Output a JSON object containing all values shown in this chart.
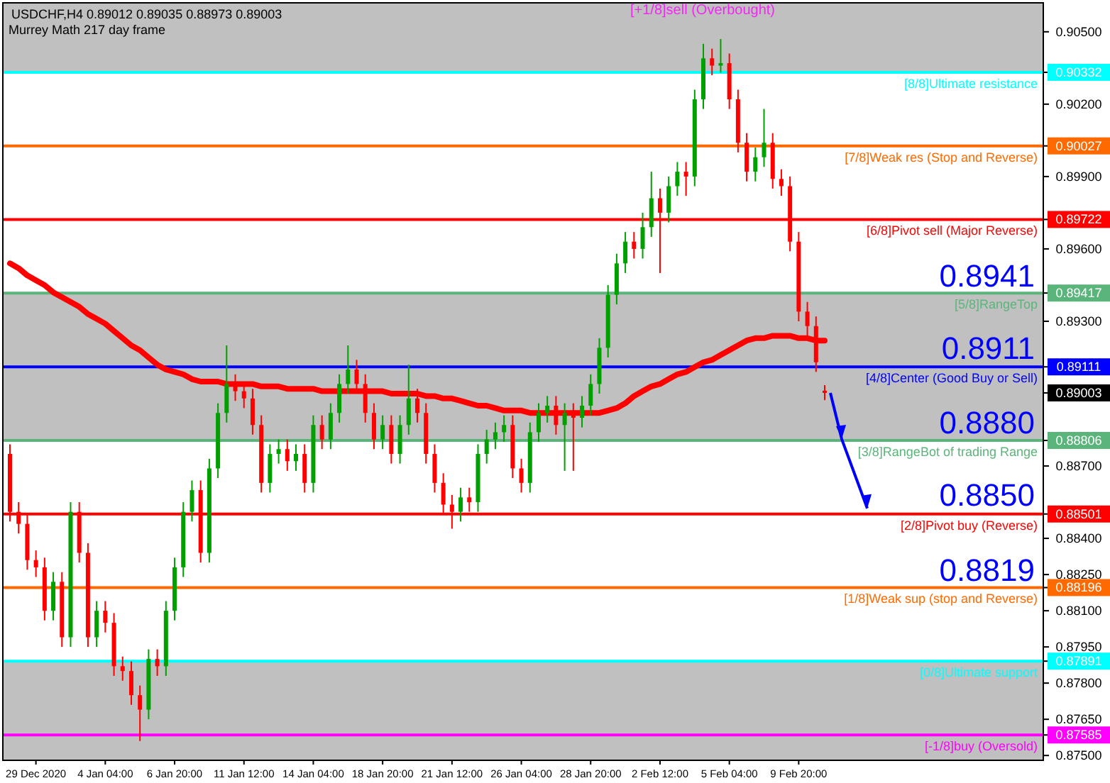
{
  "chart_data": {
    "type": "candlestick",
    "title": "USDCHF,H4  0.89012 0.89035 0.88973 0.89003",
    "subtitle": "Murrey Math 217 day frame",
    "categories": [
      null,
      null,
      null,
      "29 Dec 2020",
      null,
      null,
      null,
      null,
      null,
      null,
      null,
      "4 Jan 04:00",
      null,
      null,
      null,
      null,
      null,
      null,
      null,
      "6 Jan 20:00",
      null,
      null,
      null,
      null,
      null,
      null,
      null,
      "11 Jan 12:00",
      null,
      null,
      null,
      null,
      null,
      null,
      null,
      "14 Jan 04:00",
      null,
      null,
      null,
      null,
      null,
      null,
      null,
      "18 Jan 20:00",
      null,
      null,
      null,
      null,
      null,
      null,
      null,
      "21 Jan 12:00",
      null,
      null,
      null,
      null,
      null,
      null,
      null,
      "26 Jan 04:00",
      null,
      null,
      null,
      null,
      null,
      null,
      null,
      "28 Jan 20:00",
      null,
      null,
      null,
      null,
      null,
      null,
      null,
      "2 Feb 12:00",
      null,
      null,
      null,
      null,
      null,
      null,
      null,
      "5 Feb 04:00",
      null,
      null,
      null,
      null,
      null,
      null,
      null,
      "9 Feb 20:00",
      null,
      null,
      null
    ],
    "ohlc": [
      [
        0.8875,
        0.8879,
        0.8847,
        0.8851
      ],
      [
        0.8851,
        0.8855,
        0.8842,
        0.8846
      ],
      [
        0.8846,
        0.885,
        0.8827,
        0.8831
      ],
      [
        0.8831,
        0.8835,
        0.8824,
        0.8828
      ],
      [
        0.8828,
        0.8832,
        0.8806,
        0.881
      ],
      [
        0.881,
        0.8826,
        0.8806,
        0.8822
      ],
      [
        0.8822,
        0.8826,
        0.8795,
        0.8799
      ],
      [
        0.8799,
        0.8855,
        0.8795,
        0.8851
      ],
      [
        0.8851,
        0.8855,
        0.883,
        0.8834
      ],
      [
        0.8834,
        0.8838,
        0.8795,
        0.8799
      ],
      [
        0.8799,
        0.8814,
        0.8795,
        0.881
      ],
      [
        0.881,
        0.8814,
        0.8801,
        0.8805
      ],
      [
        0.8805,
        0.8809,
        0.8783,
        0.8787
      ],
      [
        0.8787,
        0.8791,
        0.8781,
        0.8785
      ],
      [
        0.8785,
        0.8789,
        0.8771,
        0.8775
      ],
      [
        0.8775,
        0.8779,
        0.8756,
        0.8769
      ],
      [
        0.8769,
        0.8794,
        0.8765,
        0.879
      ],
      [
        0.879,
        0.8794,
        0.8783,
        0.8787
      ],
      [
        0.8787,
        0.8814,
        0.8783,
        0.881
      ],
      [
        0.881,
        0.8832,
        0.8806,
        0.8828
      ],
      [
        0.8828,
        0.8855,
        0.8824,
        0.8851
      ],
      [
        0.8851,
        0.8864,
        0.8847,
        0.886
      ],
      [
        0.886,
        0.8864,
        0.883,
        0.8834
      ],
      [
        0.8834,
        0.8873,
        0.883,
        0.8869
      ],
      [
        0.8869,
        0.8896,
        0.8865,
        0.8892
      ],
      [
        0.8892,
        0.892,
        0.8888,
        0.8904
      ],
      [
        0.8904,
        0.8908,
        0.8897,
        0.8901
      ],
      [
        0.8901,
        0.8905,
        0.8894,
        0.8898
      ],
      [
        0.8898,
        0.8902,
        0.8883,
        0.8887
      ],
      [
        0.8887,
        0.8891,
        0.8859,
        0.8863
      ],
      [
        0.8863,
        0.8879,
        0.8859,
        0.8875
      ],
      [
        0.8875,
        0.8881,
        0.8871,
        0.8877
      ],
      [
        0.8877,
        0.8881,
        0.8868,
        0.8872
      ],
      [
        0.8872,
        0.8879,
        0.8868,
        0.8875
      ],
      [
        0.8875,
        0.8879,
        0.8859,
        0.8863
      ],
      [
        0.8863,
        0.8891,
        0.8859,
        0.8887
      ],
      [
        0.8887,
        0.8891,
        0.8877,
        0.8881
      ],
      [
        0.8881,
        0.8896,
        0.8877,
        0.8892
      ],
      [
        0.8892,
        0.8908,
        0.8888,
        0.8904
      ],
      [
        0.8904,
        0.892,
        0.89,
        0.891
      ],
      [
        0.891,
        0.8914,
        0.89,
        0.8904
      ],
      [
        0.8904,
        0.8908,
        0.8888,
        0.8892
      ],
      [
        0.8892,
        0.8896,
        0.8877,
        0.8881
      ],
      [
        0.8881,
        0.8891,
        0.8877,
        0.8887
      ],
      [
        0.8887,
        0.8891,
        0.8871,
        0.8875
      ],
      [
        0.8875,
        0.8891,
        0.8871,
        0.8887
      ],
      [
        0.8887,
        0.8912,
        0.8883,
        0.8898
      ],
      [
        0.8898,
        0.8902,
        0.8888,
        0.8892
      ],
      [
        0.8892,
        0.8896,
        0.8871,
        0.8875
      ],
      [
        0.8875,
        0.8879,
        0.8859,
        0.8863
      ],
      [
        0.8863,
        0.8867,
        0.885,
        0.8854
      ],
      [
        0.8854,
        0.8858,
        0.8844,
        0.8851
      ],
      [
        0.8851,
        0.8861,
        0.8847,
        0.8857
      ],
      [
        0.8857,
        0.8861,
        0.8851,
        0.8855
      ],
      [
        0.8855,
        0.8879,
        0.8851,
        0.8875
      ],
      [
        0.8875,
        0.8885,
        0.8871,
        0.8881
      ],
      [
        0.8881,
        0.8888,
        0.8877,
        0.8884
      ],
      [
        0.8884,
        0.8891,
        0.888,
        0.8887
      ],
      [
        0.8887,
        0.8891,
        0.8865,
        0.8869
      ],
      [
        0.8869,
        0.8873,
        0.8859,
        0.8863
      ],
      [
        0.8863,
        0.8888,
        0.8859,
        0.8884
      ],
      [
        0.8884,
        0.8896,
        0.888,
        0.8892
      ],
      [
        0.8892,
        0.8899,
        0.8888,
        0.8895
      ],
      [
        0.8895,
        0.8899,
        0.8883,
        0.8887
      ],
      [
        0.8887,
        0.8896,
        0.8868,
        0.8892
      ],
      [
        0.8892,
        0.8896,
        0.8868,
        0.889
      ],
      [
        0.889,
        0.8899,
        0.8886,
        0.8895
      ],
      [
        0.8895,
        0.8908,
        0.8891,
        0.8904
      ],
      [
        0.8904,
        0.8923,
        0.89,
        0.8919
      ],
      [
        0.8919,
        0.8945,
        0.8915,
        0.8941
      ],
      [
        0.8941,
        0.8958,
        0.8937,
        0.8954
      ],
      [
        0.8954,
        0.8967,
        0.895,
        0.8963
      ],
      [
        0.8963,
        0.8967,
        0.8956,
        0.896
      ],
      [
        0.896,
        0.8975,
        0.8956,
        0.8969
      ],
      [
        0.8969,
        0.8992,
        0.8965,
        0.8981
      ],
      [
        0.8981,
        0.8985,
        0.895,
        0.8975
      ],
      [
        0.8975,
        0.899,
        0.8971,
        0.8986
      ],
      [
        0.8986,
        0.8996,
        0.8982,
        0.8992
      ],
      [
        0.8992,
        0.8996,
        0.8982,
        0.899
      ],
      [
        0.899,
        0.9026,
        0.8986,
        0.9022
      ],
      [
        0.9022,
        0.9045,
        0.9018,
        0.9039
      ],
      [
        0.9039,
        0.9043,
        0.9032,
        0.9036
      ],
      [
        0.9036,
        0.9047,
        0.9033,
        0.9037
      ],
      [
        0.9037,
        0.9041,
        0.9018,
        0.9022
      ],
      [
        0.9022,
        0.9026,
        0.9,
        0.9004
      ],
      [
        0.9004,
        0.9008,
        0.8988,
        0.8992
      ],
      [
        0.8992,
        0.9002,
        0.8988,
        0.8998
      ],
      [
        0.8998,
        0.9018,
        0.8994,
        0.9004
      ],
      [
        0.9004,
        0.9008,
        0.8985,
        0.8989
      ],
      [
        0.8989,
        0.8993,
        0.8982,
        0.8986
      ],
      [
        0.8986,
        0.899,
        0.8959,
        0.8963
      ],
      [
        0.8963,
        0.8967,
        0.893,
        0.8934
      ],
      [
        0.8934,
        0.8938,
        0.8924,
        0.8928
      ],
      [
        0.8928,
        0.8932,
        0.8909,
        0.8913
      ],
      [
        0.89012,
        0.89035,
        0.88973,
        0.89003
      ]
    ],
    "series": [
      {
        "type": "line",
        "color": "#ff0000",
        "values": [
          0.8954,
          0.8952,
          0.8949,
          0.8947,
          0.8945,
          0.8942,
          0.894,
          0.8938,
          0.8936,
          0.8933,
          0.8931,
          0.8929,
          0.8926,
          0.8923,
          0.892,
          0.8918,
          0.8915,
          0.8912,
          0.891,
          0.8909,
          0.8908,
          0.8906,
          0.8905,
          0.8905,
          0.8905,
          0.8904,
          0.8904,
          0.8904,
          0.8904,
          0.8903,
          0.8903,
          0.8903,
          0.8902,
          0.8902,
          0.8902,
          0.8902,
          0.8901,
          0.8901,
          0.8901,
          0.8901,
          0.8901,
          0.8901,
          0.8901,
          0.8901,
          0.89,
          0.89,
          0.89,
          0.89,
          0.8899,
          0.8899,
          0.8898,
          0.8898,
          0.8897,
          0.8896,
          0.8895,
          0.8895,
          0.8894,
          0.8893,
          0.8893,
          0.8893,
          0.8892,
          0.8892,
          0.8892,
          0.8892,
          0.8892,
          0.8892,
          0.8892,
          0.8892,
          0.8892,
          0.8893,
          0.8894,
          0.8896,
          0.8899,
          0.8901,
          0.8903,
          0.8904,
          0.8906,
          0.8908,
          0.8909,
          0.8911,
          0.8913,
          0.8914,
          0.8916,
          0.8918,
          0.892,
          0.8922,
          0.8923,
          0.8923,
          0.8924,
          0.8924,
          0.8924,
          0.8923,
          0.8923,
          0.8922,
          0.8922
        ]
      }
    ],
    "ylim": [
      0.8748,
      0.9062
    ],
    "yticks": [
      {
        "value": 0.905,
        "label": "0.90500"
      },
      {
        "value": 0.90332,
        "label": "0.90332"
      },
      {
        "value": 0.902,
        "label": "0.90200"
      },
      {
        "value": 0.90027,
        "label": "0.90027"
      },
      {
        "value": 0.899,
        "label": "0.89900"
      },
      {
        "value": 0.89722,
        "label": "0.89722"
      },
      {
        "value": 0.896,
        "label": "0.89600"
      },
      {
        "value": 0.89417,
        "label": "0.89417"
      },
      {
        "value": 0.893,
        "label": "0.89300"
      },
      {
        "value": 0.89111,
        "label": "0.89111"
      },
      {
        "value": 0.89003,
        "label": "0.89003"
      },
      {
        "value": 0.88806,
        "label": "0.88806"
      },
      {
        "value": 0.887,
        "label": "0.88700"
      },
      {
        "value": 0.88501,
        "label": "0.88501"
      },
      {
        "value": 0.884,
        "label": "0.88400"
      },
      {
        "value": 0.8825,
        "label": "0.88250"
      },
      {
        "value": 0.88196,
        "label": "0.88196"
      },
      {
        "value": 0.881,
        "label": "0.88100"
      },
      {
        "value": 0.8795,
        "label": "0.87950"
      },
      {
        "value": 0.87891,
        "label": "0.87891"
      },
      {
        "value": 0.878,
        "label": "0.87800"
      },
      {
        "value": 0.8765,
        "label": "0.87650"
      },
      {
        "value": 0.87585,
        "label": "0.87585"
      },
      {
        "value": 0.875,
        "label": "0.87500"
      }
    ],
    "ref_lines": [
      {
        "axis": "y",
        "value": 0.90332,
        "label": "[8/8]Ultimate resistance",
        "color": "#00ffff"
      },
      {
        "axis": "y",
        "value": 0.90027,
        "label": "[7/8]Weak res (Stop and Reverse)",
        "color": "#ff6a00"
      },
      {
        "axis": "y",
        "value": 0.89722,
        "label": "[6/8]Pivot sell (Major Reverse)",
        "color": "#ff0000"
      },
      {
        "axis": "y",
        "value": 0.89417,
        "label": "[5/8]RangeTop",
        "color": "#5ab57a"
      },
      {
        "axis": "y",
        "value": 0.89111,
        "label": "[4/8]Center (Good Buy or Sell)",
        "color": "#0000ff"
      },
      {
        "axis": "y",
        "value": 0.88806,
        "label": "[3/8]RangeBot of trading Range",
        "color": "#5ab57a"
      },
      {
        "axis": "y",
        "value": 0.88501,
        "label": "[2/8]Pivot buy (Reverse)",
        "color": "#ff0000"
      },
      {
        "axis": "y",
        "value": 0.88196,
        "label": "[1/8]Weak sup (stop and Reverse)",
        "color": "#ff6a00"
      },
      {
        "axis": "y",
        "value": 0.87891,
        "label": "[0/8]Ultimate support",
        "color": "#00ffff"
      },
      {
        "axis": "y",
        "value": 0.87585,
        "label": "[-1/8]buy (Oversold)",
        "color": "#ff00ff"
      }
    ],
    "bands": [
      {
        "axis": "y",
        "from": 0.90332,
        "to": 0.9062,
        "color": "#c0c0c0"
      },
      {
        "axis": "y",
        "from": 0.88806,
        "to": 0.89417,
        "color": "#c0c0c0"
      },
      {
        "axis": "y",
        "from": 0.8748,
        "to": 0.87891,
        "color": "#c0c0c0"
      }
    ],
    "annotations": [
      "[+1/8]sell (Overbought)",
      {
        "text": "0.8941",
        "y": 0.8941
      },
      {
        "text": "0.8911",
        "y": 0.8911
      },
      {
        "text": "0.8880",
        "y": 0.888
      },
      {
        "text": "0.8850",
        "y": 0.885
      },
      {
        "text": "0.8819",
        "y": 0.8819
      }
    ]
  }
}
